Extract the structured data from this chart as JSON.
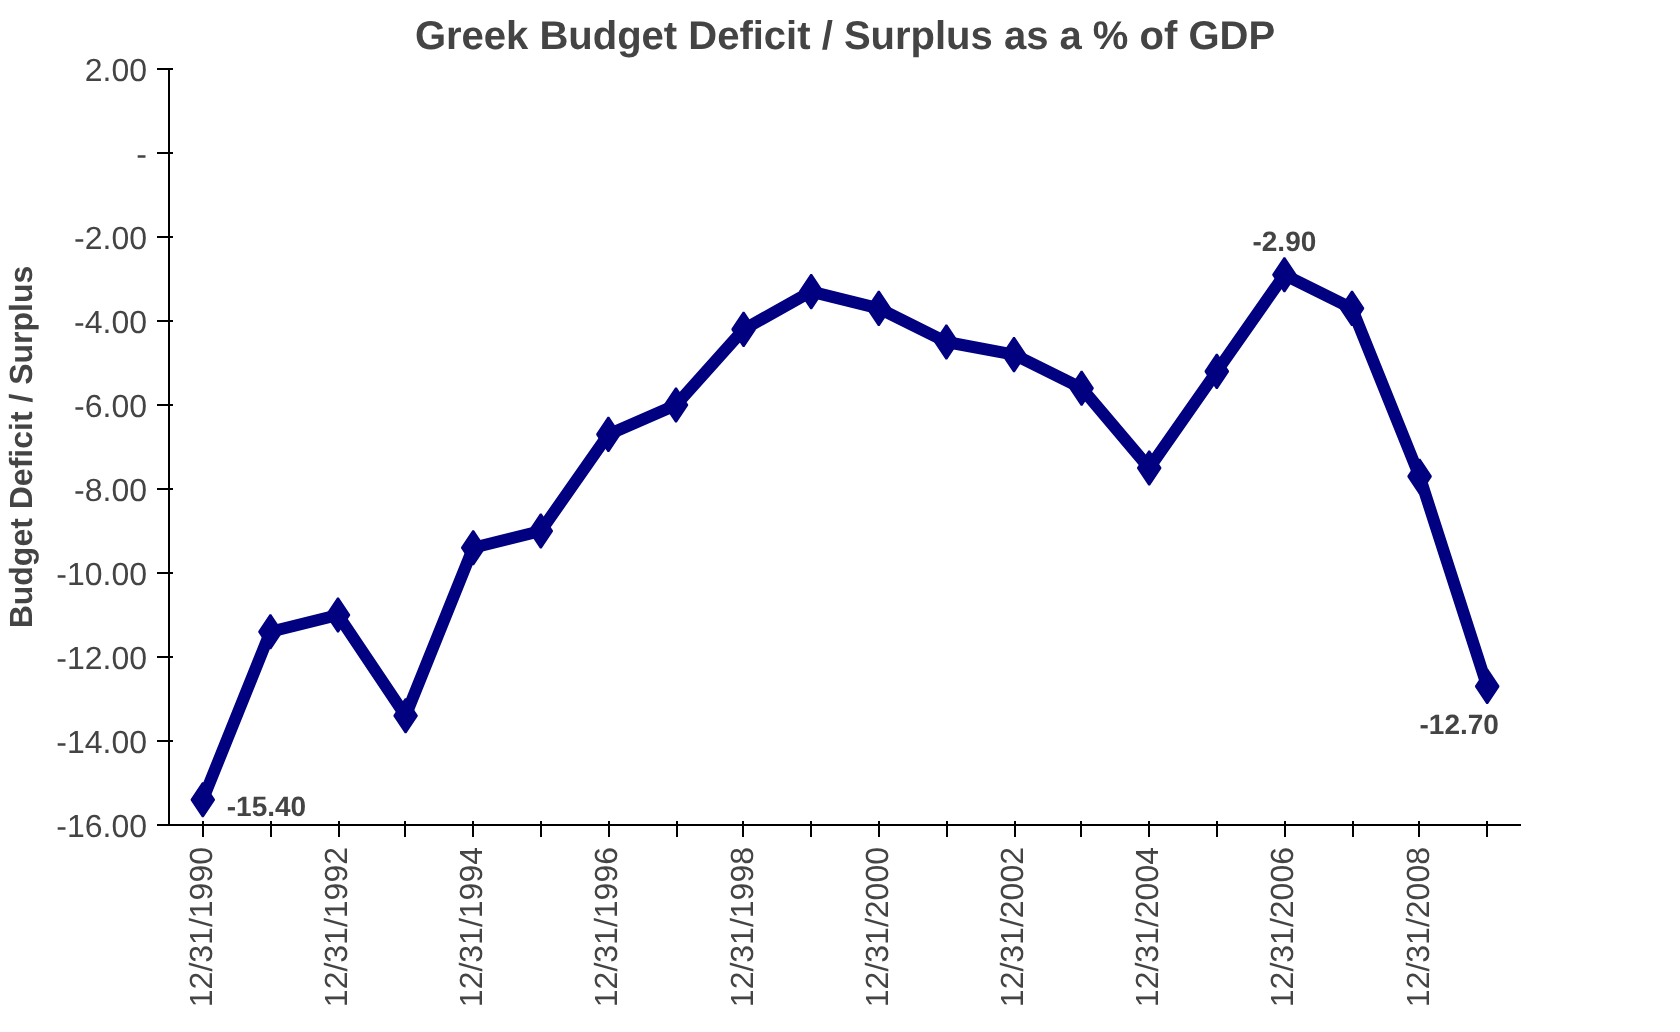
{
  "chart_data": {
    "type": "line",
    "title": "Greek Budget Deficit / Surplus as a % of GDP",
    "ylabel": "Budget Deficit / Surplus",
    "categories": [
      "12/31/1990",
      null,
      "12/31/1992",
      null,
      "12/31/1994",
      null,
      "12/31/1996",
      null,
      "12/31/1998",
      null,
      "12/31/2000",
      null,
      "12/31/2002",
      null,
      "12/31/2004",
      null,
      "12/31/2006",
      null,
      "12/31/2008",
      null
    ],
    "series": [
      {
        "color": "#000080",
        "values": [
          -15.4,
          -11.4,
          -11.0,
          -13.4,
          -9.4,
          -9.0,
          -6.7,
          -6.0,
          -4.2,
          -3.3,
          -3.7,
          -4.5,
          -4.8,
          -5.6,
          -7.5,
          -5.2,
          -2.9,
          -3.7,
          -7.7,
          -12.7
        ],
        "value_labels": [
          "-15.40",
          null,
          null,
          null,
          null,
          null,
          null,
          null,
          null,
          null,
          null,
          null,
          null,
          null,
          null,
          null,
          "-2.90",
          null,
          null,
          "-12.70"
        ]
      }
    ],
    "ylim": [
      -16,
      2
    ],
    "yticks": [
      {
        "value": 2,
        "label": "2.00"
      },
      {
        "value": 0,
        "label": "-"
      },
      {
        "value": -2,
        "label": "-2.00"
      },
      {
        "value": -4,
        "label": "-4.00"
      },
      {
        "value": -6,
        "label": "-6.00"
      },
      {
        "value": -8,
        "label": "-8.00"
      },
      {
        "value": -10,
        "label": "-10.00"
      },
      {
        "value": -12,
        "label": "-12.00"
      },
      {
        "value": -14,
        "label": "-14.00"
      },
      {
        "value": -16,
        "label": "-16.00"
      }
    ],
    "grid": false,
    "marker": "diamond",
    "line_style": "solid"
  }
}
